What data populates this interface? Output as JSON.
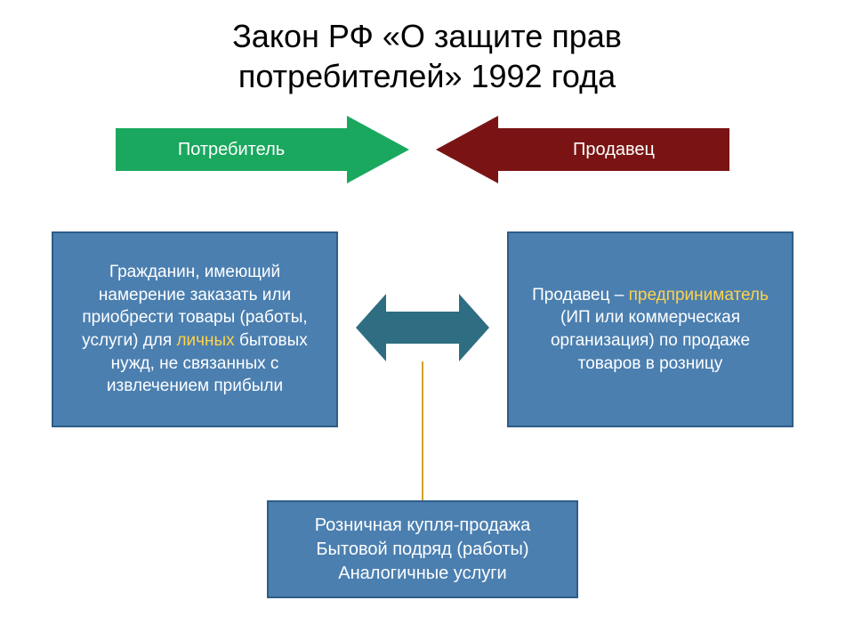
{
  "title_line1": "Закон РФ «О защите прав",
  "title_line2": "потребителей» 1992 года",
  "arrows": {
    "left_label": "Потребитель",
    "left_color": "#1aa85f",
    "left_head_color": "#1aa85f",
    "right_label": "Продавец",
    "right_color": "#7a1414",
    "right_head_color": "#7a1414"
  },
  "box_left": {
    "bg": "#4b7fb0",
    "border": "#2e5d88",
    "text_before": "Гражданин, имеющий намерение заказать или приобрести товары (работы, услуги) для ",
    "highlight": "личных",
    "highlight_color": "#ffd24d",
    "text_after": " бытовых нужд, не связанных с извлечением прибыли"
  },
  "box_right": {
    "bg": "#4b7fb0",
    "border": "#2e5d88",
    "text_before": "Продавец – ",
    "highlight": "предприниматель",
    "highlight_color": "#ffd24d",
    "text_after": " (ИП или коммерческая организация) по продаже товаров в розницу"
  },
  "box_bottom": {
    "bg": "#4b7fb0",
    "border": "#2e5d88",
    "line1": "Розничная купля-продажа",
    "line2": "Бытовой подряд (работы)",
    "line3": "Аналогичные услуги"
  },
  "double_arrow": {
    "color": "#2f6d82"
  },
  "connector_color": "#d0a22b",
  "background": "#ffffff",
  "title_color": "#000000",
  "title_fontsize": 36,
  "box_fontsize": 19
}
